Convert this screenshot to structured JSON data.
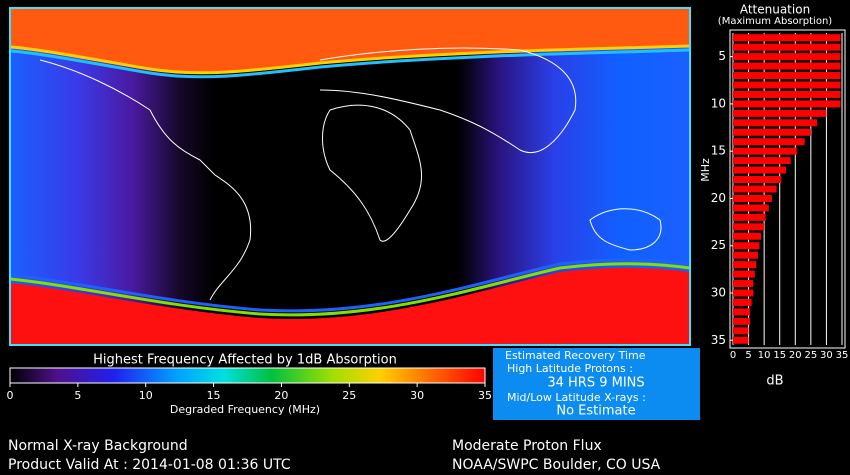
{
  "map": {
    "title": "Highest Frequency Affected by 1dB Absorption",
    "colorbar": {
      "xlim": [
        0,
        35
      ],
      "ticks": [
        0,
        5,
        10,
        15,
        20,
        25,
        30,
        35
      ],
      "label": "Degraded Frequency (MHz)"
    }
  },
  "chart_data": {
    "type": "bar",
    "orientation": "horizontal",
    "title": "Attenuation",
    "subtitle": "(Maximum Absorption)",
    "y_label": "MHz",
    "x_label": "dB",
    "frequencies": [
      3,
      4,
      5,
      6,
      7,
      8,
      9,
      10,
      11,
      12,
      13,
      14,
      15,
      16,
      17,
      18,
      19,
      20,
      21,
      22,
      23,
      24,
      25,
      26,
      27,
      28,
      29,
      30,
      31,
      32,
      33,
      34,
      35
    ],
    "values": [
      34.5,
      34.5,
      34.5,
      34.5,
      34.5,
      34.5,
      34.5,
      34.5,
      30,
      27,
      25,
      23,
      20.5,
      18.5,
      17,
      15.5,
      14,
      12.5,
      11.5,
      10.5,
      10,
      9,
      8.5,
      8,
      7.5,
      7,
      6.5,
      6.5,
      6,
      5.5,
      5.5,
      5,
      5
    ],
    "color": "#ff0000",
    "xlim": [
      0,
      35
    ],
    "xticks": [
      0,
      5,
      10,
      15,
      20,
      25,
      30,
      35
    ],
    "ylim": [
      2.5,
      35.5
    ],
    "yticks": [
      5,
      10,
      15,
      20,
      25,
      30,
      35
    ],
    "grid": true
  },
  "recovery": {
    "title": "Estimated Recovery Time",
    "high_latitude_label": "High Latitude Protons :",
    "high_latitude_value": "34 HRS 9 MINS",
    "mid_low_label": "Mid/Low Latitude X-rays :",
    "mid_low_value": "No Estimate"
  },
  "footer": {
    "left": [
      "Normal X-ray Background",
      "Product Valid At : 2014-01-08 01:36 UTC"
    ],
    "right": [
      "Moderate Proton Flux",
      "NOAA/SWPC Boulder, CO USA"
    ]
  }
}
